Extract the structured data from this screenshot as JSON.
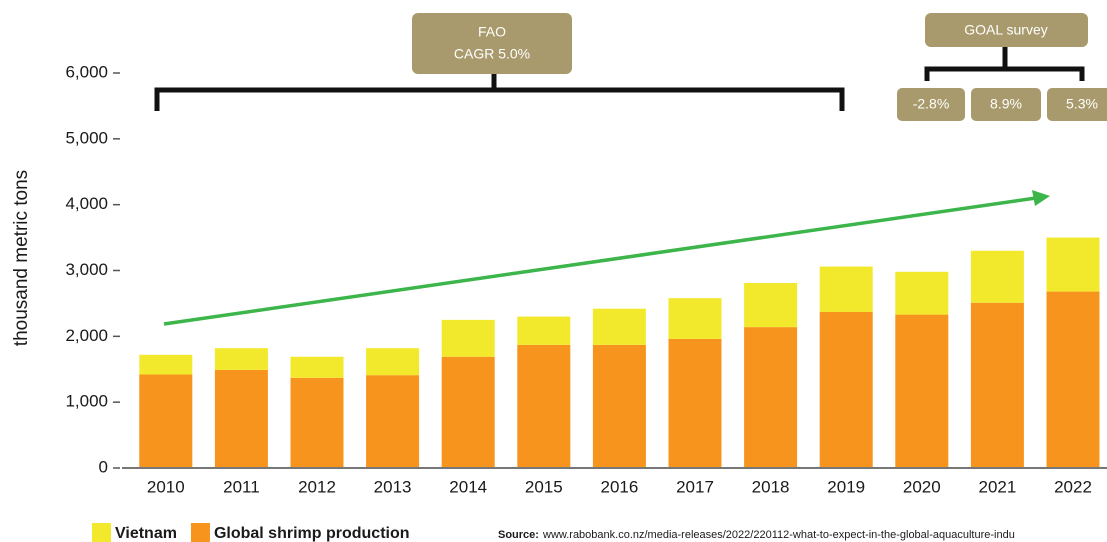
{
  "chart_data": {
    "type": "stacked_bar",
    "y_label": "thousand metric tons",
    "categories": [
      "2010",
      "2011",
      "2012",
      "2013",
      "2014",
      "2015",
      "2016",
      "2017",
      "2018",
      "2019",
      "2020",
      "2021",
      "2022"
    ],
    "series": [
      {
        "name": "Global shrimp production",
        "color": "#f7941d",
        "values": [
          1420,
          1490,
          1370,
          1410,
          1690,
          1870,
          1870,
          1960,
          2140,
          2370,
          2330,
          2510,
          2680
        ]
      },
      {
        "name": "Vietnam",
        "color": "#f2e92d",
        "values": [
          300,
          330,
          320,
          410,
          560,
          430,
          550,
          620,
          670,
          690,
          650,
          790,
          820
        ]
      }
    ],
    "ylim": [
      0,
      6000
    ],
    "yticks": [
      0,
      {
        "value": 1000,
        "label": "1,000"
      },
      {
        "value": 2000,
        "label": "2,000"
      },
      {
        "value": 3000,
        "label": "3,000"
      },
      {
        "value": 4000,
        "label": "4,000"
      },
      {
        "value": 5000,
        "label": "5,000"
      },
      {
        "value": 6000,
        "label": "6,000"
      }
    ],
    "annotations": [
      "FAO",
      "CAGR 5.0%",
      "GOAL survey",
      "-2.8%",
      "8.9%",
      "5.3%"
    ],
    "source": {
      "label": "Source:",
      "url": "www.rabobank.co.nz/media-releases/2022/220112-what-to-expect-in-the-global-aquaculture-indu"
    }
  }
}
